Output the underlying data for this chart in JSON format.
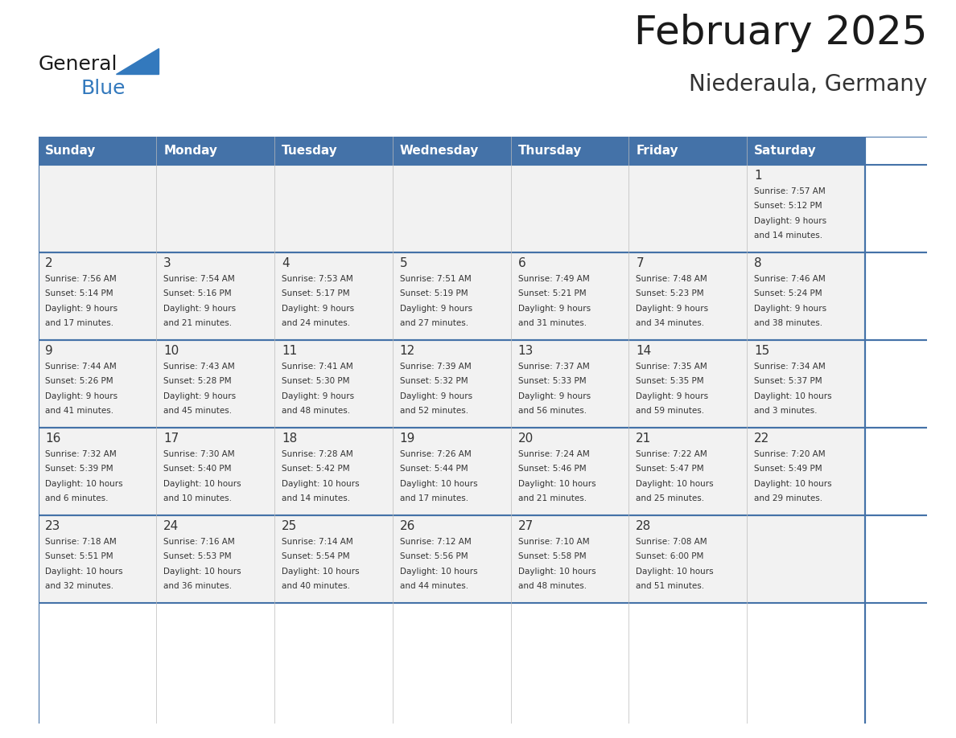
{
  "title": "February 2025",
  "subtitle": "Niederaula, Germany",
  "days_of_week": [
    "Sunday",
    "Monday",
    "Tuesday",
    "Wednesday",
    "Thursday",
    "Friday",
    "Saturday"
  ],
  "header_bg": "#4472A8",
  "header_text": "#FFFFFF",
  "cell_bg_light": "#F2F2F2",
  "cell_bg_white": "#FFFFFF",
  "separator_color": "#4472A8",
  "day_num_color": "#333333",
  "info_color": "#333333",
  "title_color": "#1a1a1a",
  "subtitle_color": "#333333",
  "logo_general_color": "#1a1a1a",
  "logo_blue_color": "#3379BD",
  "weeks": [
    [
      {
        "day": null,
        "sunrise": null,
        "sunset": null,
        "daylight": null
      },
      {
        "day": null,
        "sunrise": null,
        "sunset": null,
        "daylight": null
      },
      {
        "day": null,
        "sunrise": null,
        "sunset": null,
        "daylight": null
      },
      {
        "day": null,
        "sunrise": null,
        "sunset": null,
        "daylight": null
      },
      {
        "day": null,
        "sunrise": null,
        "sunset": null,
        "daylight": null
      },
      {
        "day": null,
        "sunrise": null,
        "sunset": null,
        "daylight": null
      },
      {
        "day": 1,
        "sunrise": "7:57 AM",
        "sunset": "5:12 PM",
        "daylight": "9 hours and 14 minutes."
      }
    ],
    [
      {
        "day": 2,
        "sunrise": "7:56 AM",
        "sunset": "5:14 PM",
        "daylight": "9 hours and 17 minutes."
      },
      {
        "day": 3,
        "sunrise": "7:54 AM",
        "sunset": "5:16 PM",
        "daylight": "9 hours and 21 minutes."
      },
      {
        "day": 4,
        "sunrise": "7:53 AM",
        "sunset": "5:17 PM",
        "daylight": "9 hours and 24 minutes."
      },
      {
        "day": 5,
        "sunrise": "7:51 AM",
        "sunset": "5:19 PM",
        "daylight": "9 hours and 27 minutes."
      },
      {
        "day": 6,
        "sunrise": "7:49 AM",
        "sunset": "5:21 PM",
        "daylight": "9 hours and 31 minutes."
      },
      {
        "day": 7,
        "sunrise": "7:48 AM",
        "sunset": "5:23 PM",
        "daylight": "9 hours and 34 minutes."
      },
      {
        "day": 8,
        "sunrise": "7:46 AM",
        "sunset": "5:24 PM",
        "daylight": "9 hours and 38 minutes."
      }
    ],
    [
      {
        "day": 9,
        "sunrise": "7:44 AM",
        "sunset": "5:26 PM",
        "daylight": "9 hours and 41 minutes."
      },
      {
        "day": 10,
        "sunrise": "7:43 AM",
        "sunset": "5:28 PM",
        "daylight": "9 hours and 45 minutes."
      },
      {
        "day": 11,
        "sunrise": "7:41 AM",
        "sunset": "5:30 PM",
        "daylight": "9 hours and 48 minutes."
      },
      {
        "day": 12,
        "sunrise": "7:39 AM",
        "sunset": "5:32 PM",
        "daylight": "9 hours and 52 minutes."
      },
      {
        "day": 13,
        "sunrise": "7:37 AM",
        "sunset": "5:33 PM",
        "daylight": "9 hours and 56 minutes."
      },
      {
        "day": 14,
        "sunrise": "7:35 AM",
        "sunset": "5:35 PM",
        "daylight": "9 hours and 59 minutes."
      },
      {
        "day": 15,
        "sunrise": "7:34 AM",
        "sunset": "5:37 PM",
        "daylight": "10 hours and 3 minutes."
      }
    ],
    [
      {
        "day": 16,
        "sunrise": "7:32 AM",
        "sunset": "5:39 PM",
        "daylight": "10 hours and 6 minutes."
      },
      {
        "day": 17,
        "sunrise": "7:30 AM",
        "sunset": "5:40 PM",
        "daylight": "10 hours and 10 minutes."
      },
      {
        "day": 18,
        "sunrise": "7:28 AM",
        "sunset": "5:42 PM",
        "daylight": "10 hours and 14 minutes."
      },
      {
        "day": 19,
        "sunrise": "7:26 AM",
        "sunset": "5:44 PM",
        "daylight": "10 hours and 17 minutes."
      },
      {
        "day": 20,
        "sunrise": "7:24 AM",
        "sunset": "5:46 PM",
        "daylight": "10 hours and 21 minutes."
      },
      {
        "day": 21,
        "sunrise": "7:22 AM",
        "sunset": "5:47 PM",
        "daylight": "10 hours and 25 minutes."
      },
      {
        "day": 22,
        "sunrise": "7:20 AM",
        "sunset": "5:49 PM",
        "daylight": "10 hours and 29 minutes."
      }
    ],
    [
      {
        "day": 23,
        "sunrise": "7:18 AM",
        "sunset": "5:51 PM",
        "daylight": "10 hours and 32 minutes."
      },
      {
        "day": 24,
        "sunrise": "7:16 AM",
        "sunset": "5:53 PM",
        "daylight": "10 hours and 36 minutes."
      },
      {
        "day": 25,
        "sunrise": "7:14 AM",
        "sunset": "5:54 PM",
        "daylight": "10 hours and 40 minutes."
      },
      {
        "day": 26,
        "sunrise": "7:12 AM",
        "sunset": "5:56 PM",
        "daylight": "10 hours and 44 minutes."
      },
      {
        "day": 27,
        "sunrise": "7:10 AM",
        "sunset": "5:58 PM",
        "daylight": "10 hours and 48 minutes."
      },
      {
        "day": 28,
        "sunrise": "7:08 AM",
        "sunset": "6:00 PM",
        "daylight": "10 hours and 51 minutes."
      },
      {
        "day": null,
        "sunrise": null,
        "sunset": null,
        "daylight": null
      }
    ]
  ]
}
